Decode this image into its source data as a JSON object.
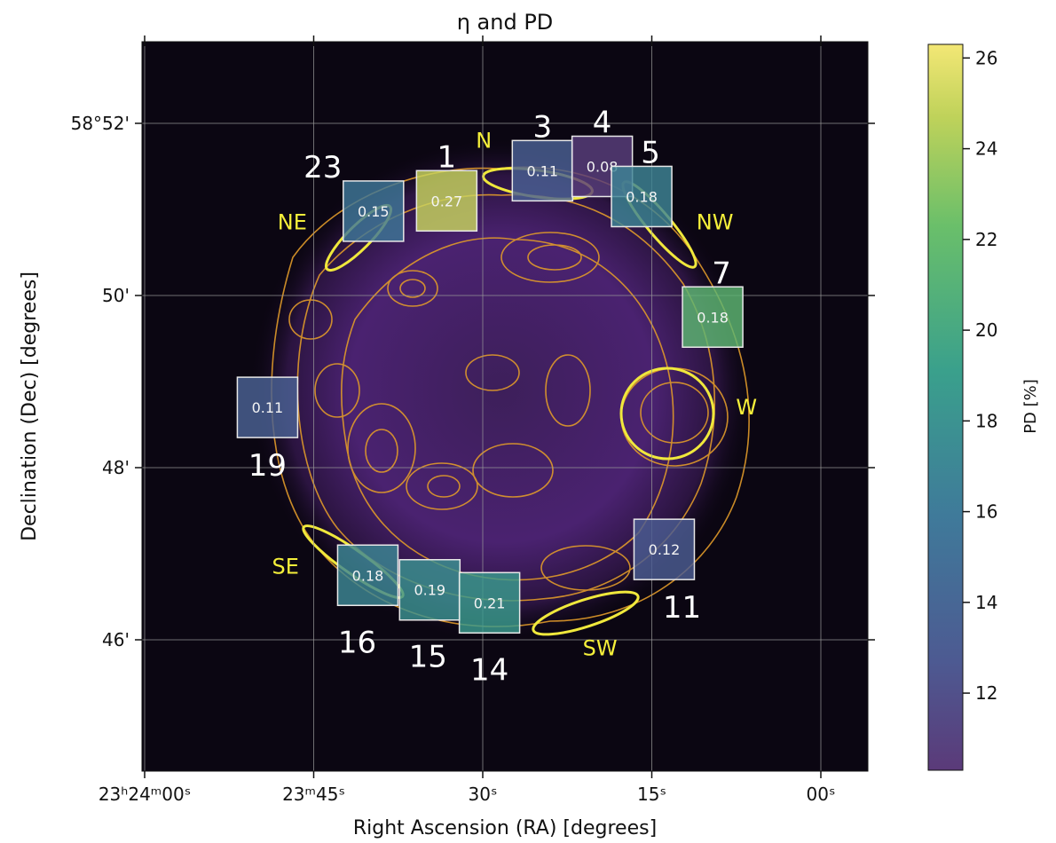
{
  "chart_data": {
    "type": "image_with_overlays",
    "title": "η and PD",
    "xlabel": "Right Ascension (RA) [degrees]",
    "ylabel": "Declination (Dec) [degrees]",
    "x_ticks": [
      {
        "main": "23ʰ24ᵐ00ˢ",
        "value_sec": 0
      },
      {
        "main": "23ᵐ45ˢ",
        "value_sec": 15
      },
      {
        "main": "30ˢ",
        "value_sec": 30
      },
      {
        "main": "15ˢ",
        "value_sec": 45
      },
      {
        "main": "00ˢ",
        "value_sec": 60
      }
    ],
    "y_ticks": [
      {
        "label": "58°52'",
        "value_arcmin": 52
      },
      {
        "label": "50'",
        "value_arcmin": 50
      },
      {
        "label": "48'",
        "value_arcmin": 48
      },
      {
        "label": "46'",
        "value_arcmin": 46
      }
    ],
    "grid": true,
    "colorbar": {
      "label": "PD [%]",
      "min": 10.3,
      "max": 26.3,
      "ticks": [
        12,
        14,
        16,
        18,
        20,
        22,
        24,
        26
      ],
      "colormap": "viridis"
    },
    "regions": [
      {
        "id": "1",
        "eta": "0.27",
        "pd": 25.0,
        "ra_sec": 26.8,
        "dec_arcmin": 51.1
      },
      {
        "id": "23",
        "eta": "0.15",
        "pd": 15.6,
        "ra_sec": 20.3,
        "dec_arcmin": 50.98
      },
      {
        "id": "3",
        "eta": "0.11",
        "pd": 13.3,
        "ra_sec": 35.3,
        "dec_arcmin": 51.45
      },
      {
        "id": "4",
        "eta": "0.08",
        "pd": 10.6,
        "ra_sec": 40.6,
        "dec_arcmin": 51.5
      },
      {
        "id": "5",
        "eta": "0.18",
        "pd": 16.8,
        "ra_sec": 44.1,
        "dec_arcmin": 51.15
      },
      {
        "id": "7",
        "eta": "0.18",
        "pd": 21.5,
        "ra_sec": 50.4,
        "dec_arcmin": 49.75
      },
      {
        "id": "19",
        "eta": "0.11",
        "pd": 13.4,
        "ra_sec": 10.9,
        "dec_arcmin": 48.7
      },
      {
        "id": "11",
        "eta": "0.12",
        "pd": 13.0,
        "ra_sec": 46.1,
        "dec_arcmin": 47.05
      },
      {
        "id": "16",
        "eta": "0.18",
        "pd": 17.0,
        "ra_sec": 19.8,
        "dec_arcmin": 46.75
      },
      {
        "id": "15",
        "eta": "0.19",
        "pd": 18.0,
        "ra_sec": 25.3,
        "dec_arcmin": 46.58
      },
      {
        "id": "14",
        "eta": "0.21",
        "pd": 18.7,
        "ra_sec": 30.6,
        "dec_arcmin": 46.43
      }
    ],
    "region_labels": [
      {
        "text": "NE",
        "ra_sec": 13.1,
        "dec_arcmin": 50.85
      },
      {
        "text": "N",
        "ra_sec": 30.1,
        "dec_arcmin": 51.8
      },
      {
        "text": "NW",
        "ra_sec": 50.6,
        "dec_arcmin": 50.85
      },
      {
        "text": "W",
        "ra_sec": 53.4,
        "dec_arcmin": 48.7
      },
      {
        "text": "SE",
        "ra_sec": 12.5,
        "dec_arcmin": 46.85
      },
      {
        "text": "SW",
        "ra_sec": 40.4,
        "dec_arcmin": 45.9
      }
    ],
    "colors": {
      "background_image": "#0b0612",
      "remnant": "#4a2270",
      "contours": "#e09a2a",
      "ellipses": "#f0e83c",
      "region_label_text": "#f5ef3a",
      "box_edge": "#e8e8e8"
    }
  }
}
